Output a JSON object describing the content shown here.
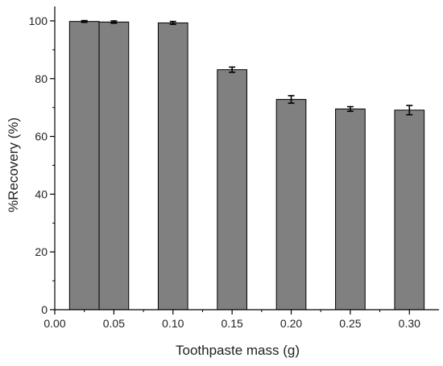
{
  "chart_data": {
    "type": "bar",
    "title": "",
    "xlabel": "Toothpaste mass (g)",
    "ylabel": "%Recovery (%)",
    "x_ticks": [
      "0.00",
      "0.05",
      "0.10",
      "0.15",
      "0.20",
      "0.25",
      "0.30"
    ],
    "y_ticks": [
      "0",
      "20",
      "40",
      "60",
      "80",
      "100"
    ],
    "xlim": [
      0.0,
      0.325
    ],
    "ylim": [
      0,
      105
    ],
    "bar_width": 0.025,
    "bars": [
      {
        "x": 0.025,
        "value": 99.8,
        "error": 0.3
      },
      {
        "x": 0.05,
        "value": 99.6,
        "error": 0.4
      },
      {
        "x": 0.1,
        "value": 99.3,
        "error": 0.5
      },
      {
        "x": 0.15,
        "value": 83.1,
        "error": 0.9
      },
      {
        "x": 0.2,
        "value": 72.8,
        "error": 1.3
      },
      {
        "x": 0.25,
        "value": 69.5,
        "error": 0.8
      },
      {
        "x": 0.3,
        "value": 69.1,
        "error": 1.6
      }
    ],
    "bar_color": "#808080",
    "bar_edge_color": "#000000",
    "grid": false,
    "legend": "none"
  }
}
